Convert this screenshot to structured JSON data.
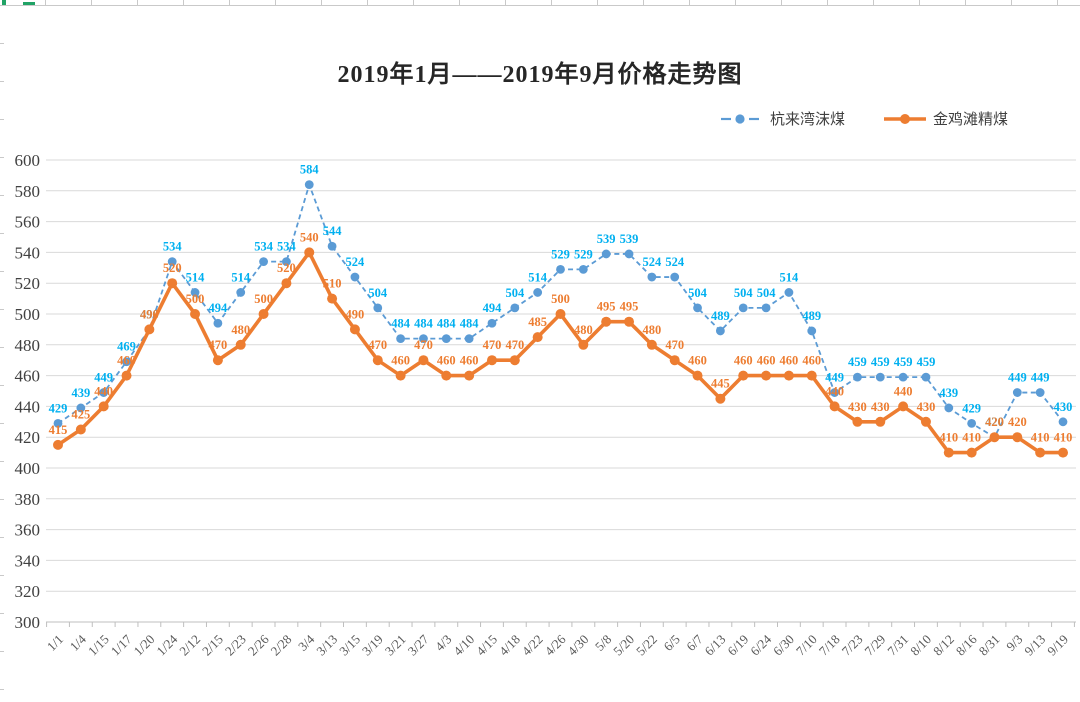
{
  "title": "2019年1月——2019年9月价格走势图",
  "excel": {
    "accent_green": "#21a366"
  },
  "chart_data": {
    "type": "line",
    "title": "2019年1月——2019年9月价格走势图",
    "categories": [
      "1/1",
      "1/4",
      "1/15",
      "1/17",
      "1/20",
      "1/24",
      "2/12",
      "2/15",
      "2/23",
      "2/26",
      "2/28",
      "3/4",
      "3/13",
      "3/15",
      "3/19",
      "3/21",
      "3/27",
      "4/3",
      "4/10",
      "4/15",
      "4/18",
      "4/22",
      "4/26",
      "4/30",
      "5/8",
      "5/20",
      "5/22",
      "6/5",
      "6/7",
      "6/13",
      "6/19",
      "6/24",
      "6/30",
      "7/10",
      "7/18",
      "7/23",
      "7/29",
      "7/31",
      "8/10",
      "8/12",
      "8/16",
      "8/31",
      "9/3",
      "9/13",
      "9/19"
    ],
    "series": [
      {
        "name": "杭来湾沫煤",
        "line_color": "#5B9BD5",
        "label_color": "#00B0F0",
        "line_style": "dashed",
        "values": [
          429,
          439,
          449,
          469,
          490,
          534,
          514,
          494,
          514,
          534,
          534,
          584,
          544,
          524,
          504,
          484,
          484,
          484,
          484,
          494,
          504,
          514,
          529,
          529,
          539,
          539,
          524,
          524,
          504,
          489,
          504,
          504,
          514,
          489,
          449,
          459,
          459,
          459,
          459,
          439,
          429,
          420,
          449,
          449,
          430
        ]
      },
      {
        "name": "金鸡滩精煤",
        "line_color": "#ED7D31",
        "label_color": "#ED7D31",
        "line_style": "solid",
        "values": [
          415,
          425,
          440,
          460,
          490,
          520,
          500,
          470,
          480,
          500,
          520,
          540,
          510,
          490,
          470,
          460,
          470,
          460,
          460,
          470,
          470,
          485,
          500,
          480,
          495,
          495,
          480,
          470,
          460,
          445,
          460,
          460,
          460,
          460,
          440,
          430,
          430,
          440,
          430,
          410,
          410,
          420,
          420,
          410,
          410
        ]
      }
    ],
    "xlabel": "",
    "ylabel": "",
    "ylim": [
      300,
      600
    ],
    "ytick_step": 20,
    "grid": true,
    "gridline_color": "#D9D9D9",
    "axis_color": "#BFBFBF",
    "data_labels": true,
    "legend_position": "top-right"
  }
}
